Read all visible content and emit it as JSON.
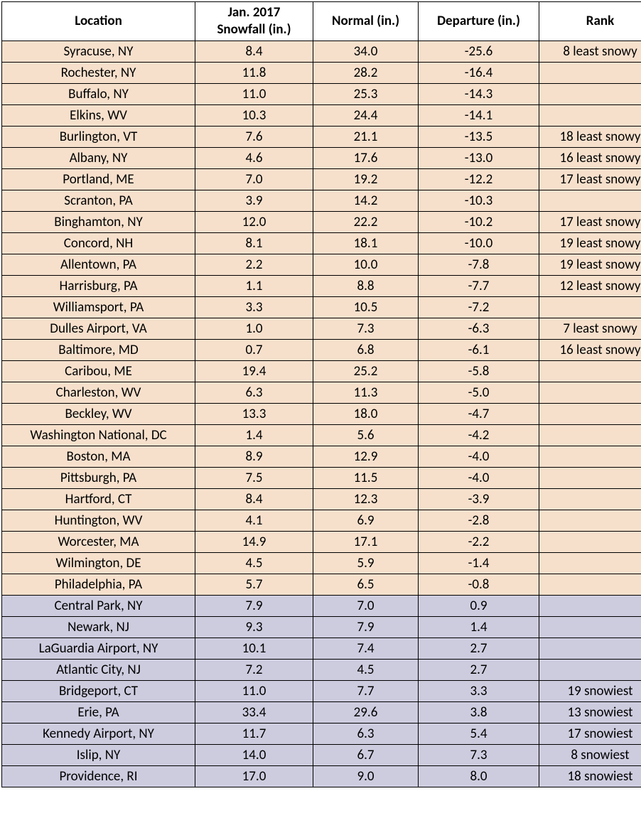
{
  "colors": {
    "header_bg": "#ffffff",
    "neg_bg": "#f6e0cc",
    "pos_bg": "#cdccdf",
    "border": "#000000",
    "text": "#000000"
  },
  "columns": [
    {
      "label": "Location"
    },
    {
      "label": "Jan. 2017\nSnowfall (in.)"
    },
    {
      "label": "Normal (in.)"
    },
    {
      "label": "Departure (in.)"
    },
    {
      "label": "Rank"
    }
  ],
  "rows": [
    {
      "location": "Syracuse, NY",
      "snowfall": "8.4",
      "normal": "34.0",
      "departure": "-25.6",
      "rank": "8 least snowy",
      "group": "neg"
    },
    {
      "location": "Rochester, NY",
      "snowfall": "11.8",
      "normal": "28.2",
      "departure": "-16.4",
      "rank": "",
      "group": "neg"
    },
    {
      "location": "Buffalo, NY",
      "snowfall": "11.0",
      "normal": "25.3",
      "departure": "-14.3",
      "rank": "",
      "group": "neg"
    },
    {
      "location": "Elkins, WV",
      "snowfall": "10.3",
      "normal": "24.4",
      "departure": "-14.1",
      "rank": "",
      "group": "neg"
    },
    {
      "location": "Burlington, VT",
      "snowfall": "7.6",
      "normal": "21.1",
      "departure": "-13.5",
      "rank": "18 least snowy",
      "group": "neg"
    },
    {
      "location": "Albany, NY",
      "snowfall": "4.6",
      "normal": "17.6",
      "departure": "-13.0",
      "rank": "16 least snowy",
      "group": "neg"
    },
    {
      "location": "Portland, ME",
      "snowfall": "7.0",
      "normal": "19.2",
      "departure": "-12.2",
      "rank": "17 least snowy",
      "group": "neg"
    },
    {
      "location": "Scranton, PA",
      "snowfall": "3.9",
      "normal": "14.2",
      "departure": "-10.3",
      "rank": "",
      "group": "neg"
    },
    {
      "location": "Binghamton, NY",
      "snowfall": "12.0",
      "normal": "22.2",
      "departure": "-10.2",
      "rank": "17 least snowy",
      "group": "neg"
    },
    {
      "location": "Concord, NH",
      "snowfall": "8.1",
      "normal": "18.1",
      "departure": "-10.0",
      "rank": "19 least snowy",
      "group": "neg"
    },
    {
      "location": "Allentown, PA",
      "snowfall": "2.2",
      "normal": "10.0",
      "departure": "-7.8",
      "rank": "19 least snowy",
      "group": "neg"
    },
    {
      "location": "Harrisburg, PA",
      "snowfall": "1.1",
      "normal": "8.8",
      "departure": "-7.7",
      "rank": "12 least snowy",
      "group": "neg"
    },
    {
      "location": "Williamsport, PA",
      "snowfall": "3.3",
      "normal": "10.5",
      "departure": "-7.2",
      "rank": "",
      "group": "neg"
    },
    {
      "location": "Dulles Airport, VA",
      "snowfall": "1.0",
      "normal": "7.3",
      "departure": "-6.3",
      "rank": "7 least snowy",
      "group": "neg"
    },
    {
      "location": "Baltimore, MD",
      "snowfall": "0.7",
      "normal": "6.8",
      "departure": "-6.1",
      "rank": "16 least snowy",
      "group": "neg"
    },
    {
      "location": "Caribou, ME",
      "snowfall": "19.4",
      "normal": "25.2",
      "departure": "-5.8",
      "rank": "",
      "group": "neg"
    },
    {
      "location": "Charleston, WV",
      "snowfall": "6.3",
      "normal": "11.3",
      "departure": "-5.0",
      "rank": "",
      "group": "neg"
    },
    {
      "location": "Beckley, WV",
      "snowfall": "13.3",
      "normal": "18.0",
      "departure": "-4.7",
      "rank": "",
      "group": "neg"
    },
    {
      "location": "Washington National, DC",
      "snowfall": "1.4",
      "normal": "5.6",
      "departure": "-4.2",
      "rank": "",
      "group": "neg"
    },
    {
      "location": "Boston, MA",
      "snowfall": "8.9",
      "normal": "12.9",
      "departure": "-4.0",
      "rank": "",
      "group": "neg"
    },
    {
      "location": "Pittsburgh, PA",
      "snowfall": "7.5",
      "normal": "11.5",
      "departure": "-4.0",
      "rank": "",
      "group": "neg"
    },
    {
      "location": "Hartford, CT",
      "snowfall": "8.4",
      "normal": "12.3",
      "departure": "-3.9",
      "rank": "",
      "group": "neg"
    },
    {
      "location": "Huntington, WV",
      "snowfall": "4.1",
      "normal": "6.9",
      "departure": "-2.8",
      "rank": "",
      "group": "neg"
    },
    {
      "location": "Worcester, MA",
      "snowfall": "14.9",
      "normal": "17.1",
      "departure": "-2.2",
      "rank": "",
      "group": "neg"
    },
    {
      "location": "Wilmington, DE",
      "snowfall": "4.5",
      "normal": "5.9",
      "departure": "-1.4",
      "rank": "",
      "group": "neg"
    },
    {
      "location": "Philadelphia, PA",
      "snowfall": "5.7",
      "normal": "6.5",
      "departure": "-0.8",
      "rank": "",
      "group": "neg"
    },
    {
      "location": "Central Park, NY",
      "snowfall": "7.9",
      "normal": "7.0",
      "departure": "0.9",
      "rank": "",
      "group": "pos"
    },
    {
      "location": "Newark, NJ",
      "snowfall": "9.3",
      "normal": "7.9",
      "departure": "1.4",
      "rank": "",
      "group": "pos"
    },
    {
      "location": "LaGuardia Airport, NY",
      "snowfall": "10.1",
      "normal": "7.4",
      "departure": "2.7",
      "rank": "",
      "group": "pos"
    },
    {
      "location": "Atlantic City, NJ",
      "snowfall": "7.2",
      "normal": "4.5",
      "departure": "2.7",
      "rank": "",
      "group": "pos"
    },
    {
      "location": "Bridgeport, CT",
      "snowfall": "11.0",
      "normal": "7.7",
      "departure": "3.3",
      "rank": "19 snowiest",
      "group": "pos"
    },
    {
      "location": "Erie, PA",
      "snowfall": "33.4",
      "normal": "29.6",
      "departure": "3.8",
      "rank": "13 snowiest",
      "group": "pos"
    },
    {
      "location": "Kennedy Airport, NY",
      "snowfall": "11.7",
      "normal": "6.3",
      "departure": "5.4",
      "rank": "17 snowiest",
      "group": "pos"
    },
    {
      "location": "Islip, NY",
      "snowfall": "14.0",
      "normal": "6.7",
      "departure": "7.3",
      "rank": "8 snowiest",
      "group": "pos"
    },
    {
      "location": "Providence, RI",
      "snowfall": "17.0",
      "normal": "9.0",
      "departure": "8.0",
      "rank": "18 snowiest",
      "group": "pos"
    }
  ]
}
